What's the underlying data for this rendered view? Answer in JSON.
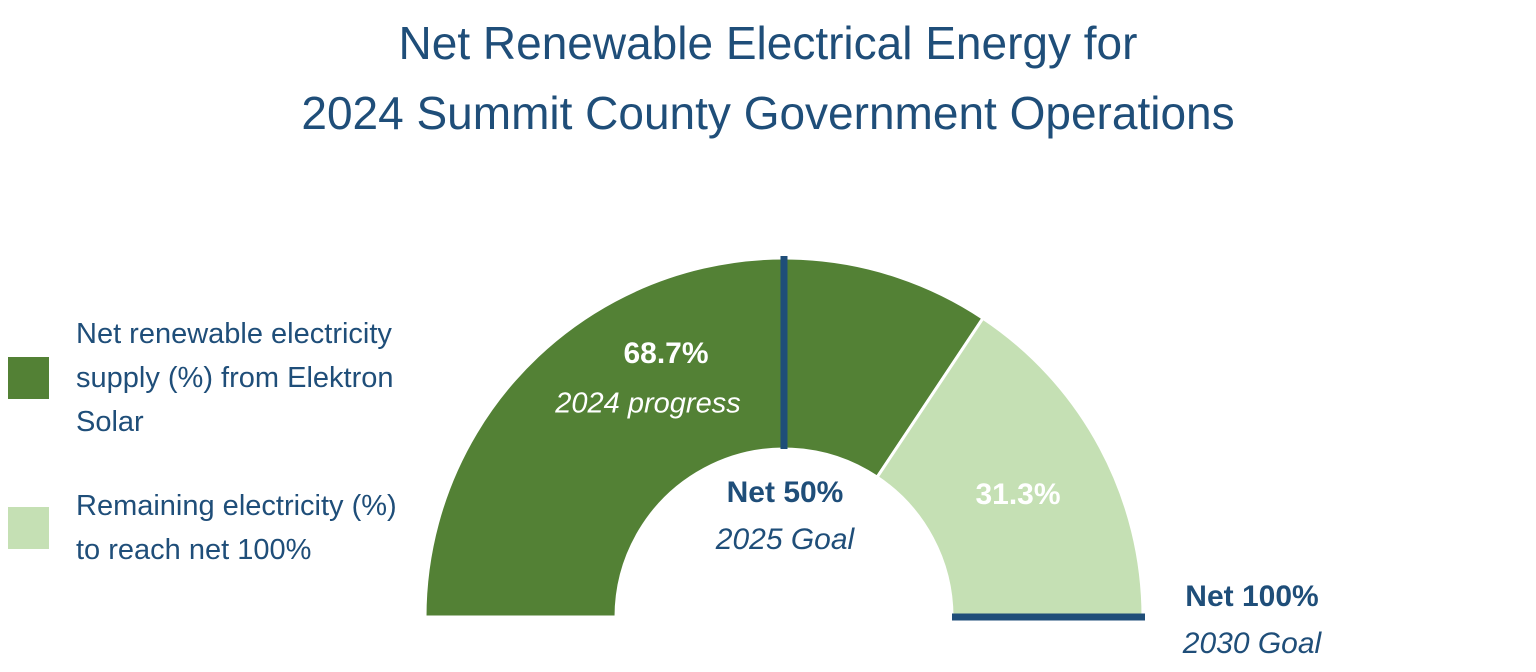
{
  "chart_data": {
    "type": "gauge",
    "title": [
      "Net Renewable Electrical Energy for",
      "2024 Summit County Government Operations"
    ],
    "range": [
      0,
      100
    ],
    "series": [
      {
        "name": "Net renewable electricity supply (%) from Elektron Solar",
        "color": "#538135",
        "value": 68.7,
        "value_label": "68.7%",
        "annotation": "2024 progress",
        "label_color": "#ffffff"
      },
      {
        "name": "Remaining electricity (%) to reach net 100%",
        "color": "#c5e0b4",
        "value": 31.3,
        "value_label": "31.3%",
        "label_color": "#ffffff"
      }
    ],
    "goals": [
      {
        "value": 50,
        "label": "Net 50%",
        "sublabel": "2025 Goal"
      },
      {
        "value": 100,
        "label": "Net 100%",
        "sublabel": "2030 Goal"
      }
    ],
    "goal_color": "#1f4e79",
    "legend": "left"
  }
}
